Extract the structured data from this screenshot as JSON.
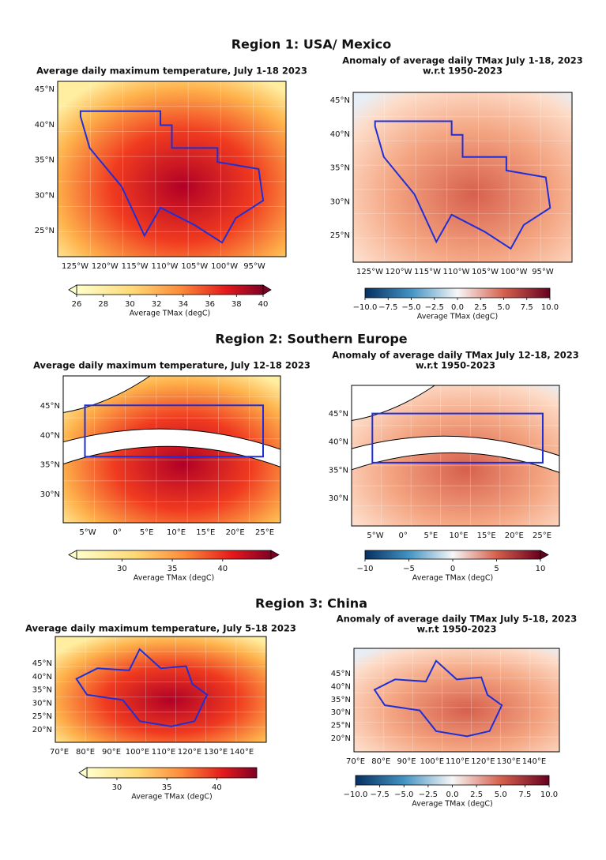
{
  "regions": [
    {
      "title": "Region 1: USA/ Mexico",
      "panels": [
        {
          "title": [
            "Average daily maximum temperature, July 1-18 2023"
          ],
          "lat_labels": [
            "45°N",
            "40°N",
            "35°N",
            "30°N",
            "25°N"
          ],
          "lon_labels": [
            "125°W",
            "120°W",
            "115°W",
            "110°W",
            "105°W",
            "100°W",
            "95°W"
          ],
          "colorbar": {
            "colormap": "heat",
            "label": "Average TMax (degC)",
            "lim": [
              26,
              40
            ],
            "ticks": [
              26,
              28,
              30,
              32,
              34,
              36,
              38,
              40
            ]
          }
        },
        {
          "title": [
            "Anomaly of average daily TMax July 1-18, 2023",
            "w.r.t 1950-2023"
          ],
          "lat_labels": [
            "45°N",
            "40°N",
            "35°N",
            "30°N",
            "25°N"
          ],
          "lon_labels": [
            "125°W",
            "120°W",
            "115°W",
            "110°W",
            "105°W",
            "100°W",
            "95°W"
          ],
          "colorbar": {
            "colormap": "anomaly",
            "label": "Average TMax (degC)",
            "lim": [
              -10,
              10
            ],
            "ticks": [
              {
                "value": -10,
                "label": "−10.0"
              },
              {
                "value": -7.5,
                "label": "−7.5"
              },
              {
                "value": -5,
                "label": "−5.0"
              },
              {
                "value": -2.5,
                "label": "−2.5"
              },
              {
                "value": 0,
                "label": "0.0"
              },
              2.5,
              {
                "value": 5,
                "label": "5.0"
              },
              7.5,
              {
                "value": 10,
                "label": "10.0"
              }
            ]
          }
        }
      ]
    },
    {
      "title": "Region 2: Southern Europe",
      "panels": [
        {
          "title": [
            "Average daily maximum temperature, July 12-18 2023"
          ],
          "lat_labels": [
            "45°N",
            "40°N",
            "35°N",
            "30°N"
          ],
          "lon_labels": [
            "5°W",
            "0°",
            "5°E",
            "10°E",
            "15°E",
            "20°E",
            "25°E"
          ],
          "colorbar": {
            "colormap": "heat",
            "label": "Average TMax (degC)",
            "lim": [
              25.5,
              44.8
            ],
            "ticks": [
              30,
              35,
              40
            ]
          }
        },
        {
          "title": [
            "Anomaly of average daily TMax July 12-18, 2023",
            "w.r.t 1950-2023"
          ],
          "lat_labels": [
            "45°N",
            "40°N",
            "35°N",
            "30°N"
          ],
          "lon_labels": [
            "5°W",
            "0°",
            "5°E",
            "10°E",
            "15°E",
            "20°E",
            "25°E"
          ],
          "colorbar": {
            "colormap": "anomaly",
            "label": "Average TMax (degC)",
            "lim": [
              -10,
              10
            ],
            "ticks": [
              {
                "value": -10,
                "label": "−10"
              },
              {
                "value": -5,
                "label": "−5"
              },
              0,
              5,
              10
            ]
          }
        }
      ]
    },
    {
      "title": "Region 3: China",
      "panels": [
        {
          "title": [
            "Average daily maximum temperature, July 5-18 2023"
          ],
          "lat_labels": [
            "45°N",
            "40°N",
            "35°N",
            "30°N",
            "25°N",
            "20°N"
          ],
          "lon_labels": [
            "70°E",
            "80°E",
            "90°E",
            "100°E",
            "110°E",
            "120°E",
            "130°E",
            "140°E"
          ],
          "colorbar": {
            "colormap": "heat",
            "label": "Average TMax (degC)",
            "lim": [
              27,
              44
            ],
            "ticks": [
              30,
              35,
              40
            ]
          }
        },
        {
          "title": [
            "Anomaly of average daily TMax July 5-18, 2023",
            "w.r.t 1950-2023"
          ],
          "lat_labels": [
            "45°N",
            "40°N",
            "35°N",
            "30°N",
            "25°N",
            "20°N"
          ],
          "lon_labels": [
            "70°E",
            "80°E",
            "90°E",
            "100°E",
            "110°E",
            "120°E",
            "130°E",
            "140°E"
          ],
          "colorbar": {
            "colormap": "anomaly",
            "label": "Average TMax (degC)",
            "lim": [
              -10,
              10
            ],
            "ticks": [
              {
                "value": -10,
                "label": "−10.0"
              },
              {
                "value": -7.5,
                "label": "−7.5"
              },
              {
                "value": -5,
                "label": "−5.0"
              },
              {
                "value": -2.5,
                "label": "−2.5"
              },
              {
                "value": 0,
                "label": "0.0"
              },
              2.5,
              {
                "value": 5,
                "label": "5.0"
              },
              7.5,
              {
                "value": 10,
                "label": "10.0"
              }
            ]
          }
        }
      ]
    }
  ]
}
